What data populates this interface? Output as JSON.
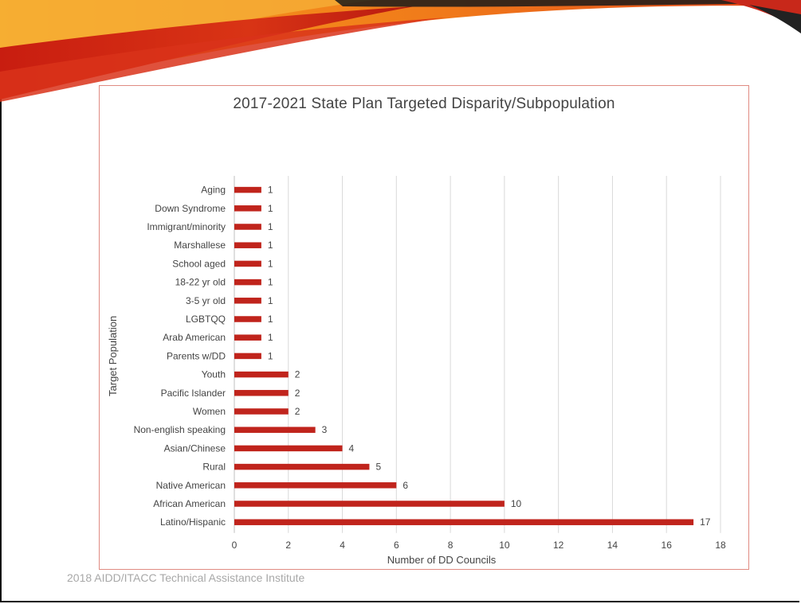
{
  "footer": "2018 AIDD/ITACC  Technical Assistance Institute",
  "colors": {
    "bar": "#c0241c",
    "grid": "#d9d9d9",
    "border": "#e08b82",
    "banner_red": "#d62a12",
    "banner_orange": "#f28a1c"
  },
  "chart_data": {
    "type": "bar",
    "orientation": "horizontal",
    "title": "2017-2021 State Plan Targeted Disparity/Subpopulation",
    "xlabel": "Number of DD Councils",
    "ylabel": "Target Population",
    "xlim": [
      0,
      18
    ],
    "xticks": [
      0,
      2,
      4,
      6,
      8,
      10,
      12,
      14,
      16,
      18
    ],
    "grid": true,
    "legend": "none",
    "categories": [
      "Aging",
      "Down Syndrome",
      "Immigrant/minority",
      "Marshallese",
      "School aged",
      "18-22 yr old",
      "3-5 yr old",
      "LGBTQQ",
      "Arab American",
      "Parents w/DD",
      "Youth",
      "Pacific Islander",
      "Women",
      "Non-english speaking",
      "Asian/Chinese",
      "Rural",
      "Native American",
      "African American",
      "Latino/Hispanic"
    ],
    "values": [
      1,
      1,
      1,
      1,
      1,
      1,
      1,
      1,
      1,
      1,
      2,
      2,
      2,
      3,
      4,
      5,
      6,
      10,
      17
    ]
  }
}
